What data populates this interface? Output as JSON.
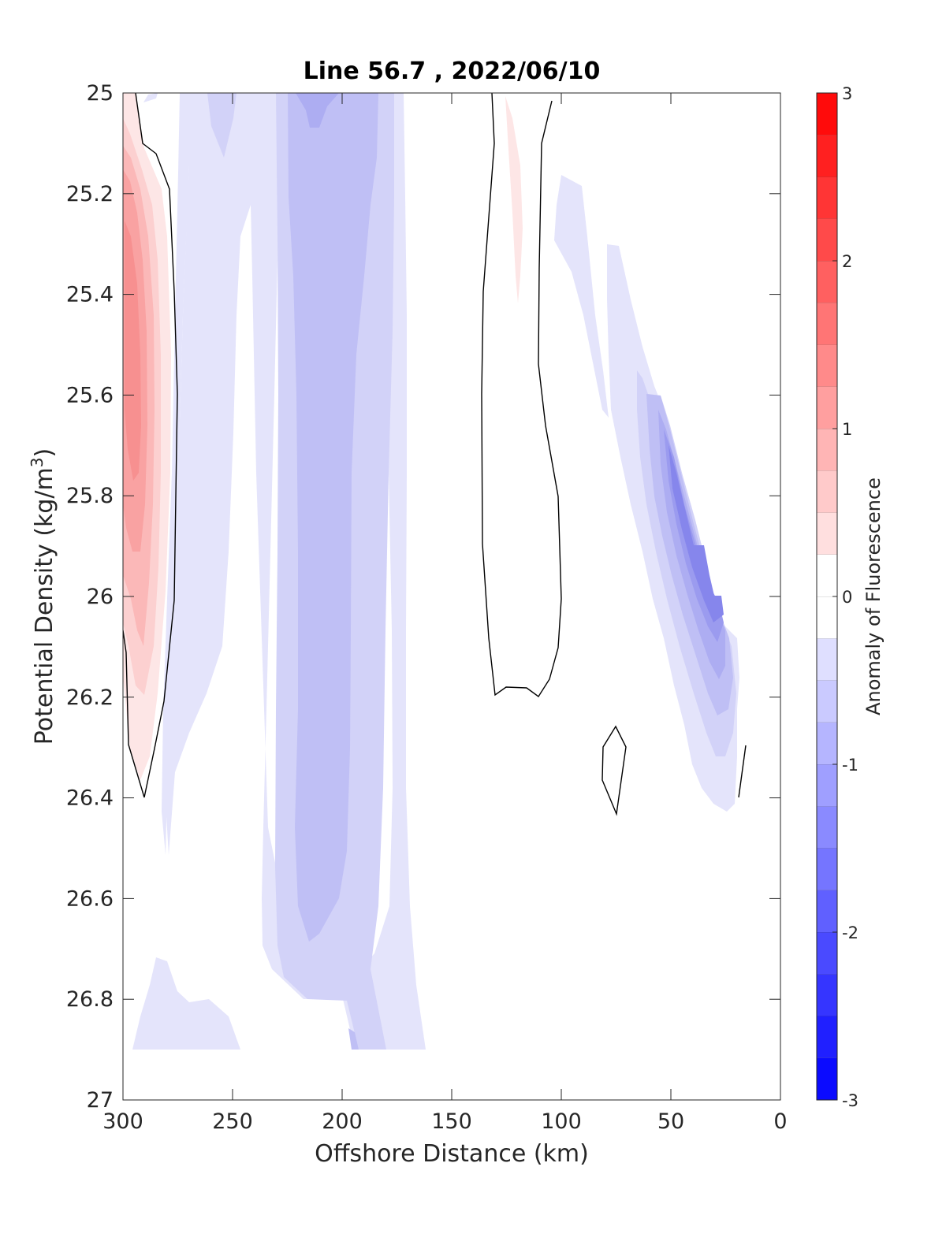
{
  "chart_data": {
    "type": "contour",
    "title": "Line 56.7 , 2022/06/10",
    "xlabel": "Offshore Distance (km)",
    "ylabel": "Potential Density (kg/m",
    "ylabel_sup": "3",
    "ylabel_end": ")",
    "x_reversed": true,
    "y_reversed": true,
    "xlim": [
      0,
      300
    ],
    "ylim": [
      25,
      27
    ],
    "xticks": [
      300,
      250,
      200,
      150,
      100,
      50,
      0
    ],
    "xtick_labels": [
      "300",
      "250",
      "200",
      "150",
      "100",
      "50",
      "0"
    ],
    "yticks": [
      25,
      25.2,
      25.4,
      25.6,
      25.8,
      26,
      26.2,
      26.4,
      26.6,
      26.8,
      27
    ],
    "ytick_labels": [
      "25",
      "25.2",
      "25.4",
      "25.6",
      "25.8",
      "26",
      "26.2",
      "26.4",
      "26.6",
      "26.8",
      "27"
    ],
    "colorbar": {
      "label": "Anomaly of Fluorescence",
      "range": [
        -3,
        3
      ],
      "levels": [
        -3,
        -2.75,
        -2.5,
        -2.25,
        -2,
        -1.75,
        -1.5,
        -1.25,
        -1,
        -0.75,
        -0.5,
        -0.25,
        0,
        0.25,
        0.5,
        0.75,
        1,
        1.25,
        1.5,
        1.75,
        2,
        2.25,
        2.5,
        2.75,
        3
      ],
      "ticks": [
        3,
        2,
        1,
        0,
        -1,
        -2,
        -3
      ],
      "tick_labels": [
        "3",
        "2",
        "1",
        "0",
        "-1",
        "-2",
        "-3"
      ],
      "colormap": "blue-white-red"
    },
    "features": [
      {
        "name": "positive-anomaly-offshore-edge",
        "x_range": [
          272,
          300
        ],
        "y_range": [
          25.0,
          26.2
        ],
        "peak_value": 1.5,
        "peak_at": {
          "x": 296,
          "y": 25.6
        }
      },
      {
        "name": "negative-anomaly-band-250km",
        "x_range": [
          230,
          275
        ],
        "y_range": [
          25.0,
          26.5
        ],
        "value": -0.25
      },
      {
        "name": "negative-anomaly-core-200km",
        "x_range": [
          165,
          235
        ],
        "y_range": [
          25.0,
          26.9
        ],
        "min_value": -0.75,
        "min_at": {
          "x": 205,
          "y": 25.05
        }
      },
      {
        "name": "negative-anomaly-lower-left",
        "x_range": [
          245,
          295
        ],
        "y_range": [
          26.7,
          26.9
        ],
        "value": -0.25
      },
      {
        "name": "positive-anomaly-120km",
        "x_range": [
          115,
          125
        ],
        "y_range": [
          25.0,
          25.4
        ],
        "value": 0.25
      },
      {
        "name": "negative-anomaly-nearshore",
        "x_range": [
          20,
          100
        ],
        "y_range": [
          25.15,
          26.43
        ],
        "min_value": -1.25,
        "min_at": {
          "x": 35,
          "y": 25.95
        }
      }
    ],
    "zero_contours": [
      {
        "name": "zero-contour-offshore",
        "x": [
          294,
          291,
          285,
          280,
          276,
          275,
          276,
          278,
          285,
          290,
          299,
          300
        ],
        "y": [
          25.0,
          25.1,
          25.13,
          25.2,
          25.4,
          25.6,
          25.9,
          26.2,
          26.3,
          26.4,
          26.3,
          26.07
        ]
      },
      {
        "name": "zero-contour-130km",
        "x": [
          132,
          130,
          134,
          135,
          130,
          123,
          113,
          108,
          100,
          100,
          100,
          101,
          101,
          108,
          109,
          112
        ],
        "y": [
          25.0,
          25.1,
          25.4,
          25.6,
          25.9,
          26.2,
          26.18,
          26.2,
          26.15,
          25.95,
          25.8,
          25.6,
          25.5,
          25.1,
          25.0,
          25.02
        ]
      },
      {
        "name": "zero-contour-75km",
        "x": [
          75,
          71,
          77,
          81,
          82,
          75
        ],
        "y": [
          26.26,
          26.3,
          26.44,
          26.4,
          26.3,
          26.26
        ]
      },
      {
        "name": "zero-contour-nearshore",
        "x": [
          15,
          20
        ],
        "y": [
          26.3,
          26.4
        ]
      }
    ]
  }
}
